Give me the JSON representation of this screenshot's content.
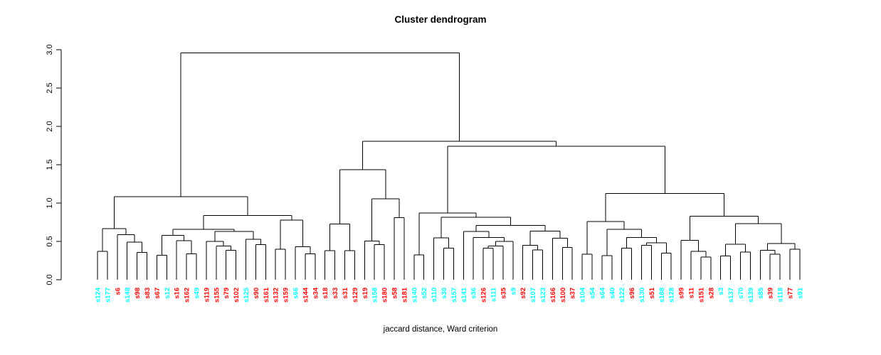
{
  "chart_data": {
    "type": "dendrogram",
    "title": "Cluster dendrogram",
    "xlabel": "jaccard distance, Ward criterion",
    "ylabel": "",
    "ylim": [
      0,
      3
    ],
    "yticks": [
      "0.0",
      "0.5",
      "1.0",
      "1.5",
      "2.0",
      "2.5",
      "3.0"
    ],
    "grid": false,
    "line_color": "#000000",
    "label_colors": {
      "red": "#FF0000",
      "cyan": "#00FFFF"
    },
    "leaves": [
      {
        "label": "s124",
        "color": "cyan"
      },
      {
        "label": "s177",
        "color": "cyan"
      },
      {
        "label": "s6",
        "color": "red"
      },
      {
        "label": "s148",
        "color": "cyan"
      },
      {
        "label": "s98",
        "color": "red"
      },
      {
        "label": "s83",
        "color": "red"
      },
      {
        "label": "s67",
        "color": "red"
      },
      {
        "label": "s12",
        "color": "cyan"
      },
      {
        "label": "s16",
        "color": "red"
      },
      {
        "label": "s162",
        "color": "red"
      },
      {
        "label": "s49",
        "color": "cyan"
      },
      {
        "label": "s119",
        "color": "red"
      },
      {
        "label": "s155",
        "color": "red"
      },
      {
        "label": "s79",
        "color": "red"
      },
      {
        "label": "s102",
        "color": "red"
      },
      {
        "label": "s125",
        "color": "cyan"
      },
      {
        "label": "s90",
        "color": "red"
      },
      {
        "label": "s161",
        "color": "red"
      },
      {
        "label": "s132",
        "color": "red"
      },
      {
        "label": "s159",
        "color": "red"
      },
      {
        "label": "s66",
        "color": "cyan"
      },
      {
        "label": "s144",
        "color": "red"
      },
      {
        "label": "s34",
        "color": "red"
      },
      {
        "label": "s18",
        "color": "red"
      },
      {
        "label": "s33",
        "color": "red"
      },
      {
        "label": "s31",
        "color": "red"
      },
      {
        "label": "s129",
        "color": "red"
      },
      {
        "label": "s19",
        "color": "red"
      },
      {
        "label": "s158",
        "color": "cyan"
      },
      {
        "label": "s180",
        "color": "red"
      },
      {
        "label": "s58",
        "color": "red"
      },
      {
        "label": "s181",
        "color": "red"
      },
      {
        "label": "s140",
        "color": "cyan"
      },
      {
        "label": "s52",
        "color": "cyan"
      },
      {
        "label": "s110",
        "color": "cyan"
      },
      {
        "label": "s30",
        "color": "cyan"
      },
      {
        "label": "s157",
        "color": "cyan"
      },
      {
        "label": "s141",
        "color": "cyan"
      },
      {
        "label": "s36",
        "color": "cyan"
      },
      {
        "label": "s126",
        "color": "red"
      },
      {
        "label": "s111",
        "color": "cyan"
      },
      {
        "label": "s35",
        "color": "red"
      },
      {
        "label": "s9",
        "color": "cyan"
      },
      {
        "label": "s92",
        "color": "red"
      },
      {
        "label": "s107",
        "color": "cyan"
      },
      {
        "label": "s123",
        "color": "cyan"
      },
      {
        "label": "s166",
        "color": "red"
      },
      {
        "label": "s100",
        "color": "red"
      },
      {
        "label": "s37",
        "color": "red"
      },
      {
        "label": "s104",
        "color": "cyan"
      },
      {
        "label": "s54",
        "color": "cyan"
      },
      {
        "label": "s64",
        "color": "cyan"
      },
      {
        "label": "s40",
        "color": "cyan"
      },
      {
        "label": "s122",
        "color": "cyan"
      },
      {
        "label": "s96",
        "color": "red"
      },
      {
        "label": "s130",
        "color": "cyan"
      },
      {
        "label": "s51",
        "color": "red"
      },
      {
        "label": "s188",
        "color": "cyan"
      },
      {
        "label": "s128",
        "color": "cyan"
      },
      {
        "label": "s99",
        "color": "red"
      },
      {
        "label": "s11",
        "color": "red"
      },
      {
        "label": "s151",
        "color": "red"
      },
      {
        "label": "s28",
        "color": "red"
      },
      {
        "label": "s3",
        "color": "cyan"
      },
      {
        "label": "s137",
        "color": "cyan"
      },
      {
        "label": "s70",
        "color": "cyan"
      },
      {
        "label": "s139",
        "color": "cyan"
      },
      {
        "label": "s85",
        "color": "cyan"
      },
      {
        "label": "s39",
        "color": "red"
      },
      {
        "label": "s118",
        "color": "cyan"
      },
      {
        "label": "s77",
        "color": "red"
      },
      {
        "label": "s91",
        "color": "cyan"
      }
    ],
    "tree": {
      "h": 2.96,
      "c": [
        {
          "h": 1.085,
          "c": [
            {
              "h": 0.665,
              "c": [
                {
                  "h": 0.37,
                  "c": [
                    "s124",
                    "s177"
                  ]
                },
                {
                  "h": 0.59,
                  "c": [
                    "s6",
                    {
                      "h": 0.49,
                      "c": [
                        "s148",
                        {
                          "h": 0.355,
                          "c": [
                            "s98",
                            "s83"
                          ]
                        }
                      ]
                    }
                  ]
                }
              ]
            },
            {
              "h": 0.84,
              "c": [
                {
                  "h": 0.657,
                  "c": [
                    {
                      "h": 0.58,
                      "c": [
                        {
                          "h": 0.32,
                          "c": [
                            "s67",
                            "s12"
                          ]
                        },
                        {
                          "h": 0.51,
                          "c": [
                            "s16",
                            {
                              "h": 0.34,
                              "c": [
                                "s162",
                                "s49"
                              ]
                            }
                          ]
                        }
                      ]
                    },
                    {
                      "h": 0.63,
                      "c": [
                        {
                          "h": 0.5,
                          "c": [
                            "s119",
                            {
                              "h": 0.44,
                              "c": [
                                "s155",
                                {
                                  "h": 0.385,
                                  "c": [
                                    "s79",
                                    "s102"
                                  ]
                                }
                              ]
                            }
                          ]
                        },
                        {
                          "h": 0.526,
                          "c": [
                            "s125",
                            {
                              "h": 0.46,
                              "c": [
                                "s90",
                                "s161"
                              ]
                            }
                          ]
                        }
                      ]
                    }
                  ]
                },
                {
                  "h": 0.78,
                  "c": [
                    {
                      "h": 0.4,
                      "c": [
                        "s132",
                        "s159"
                      ]
                    },
                    {
                      "h": 0.43,
                      "c": [
                        "s66",
                        {
                          "h": 0.34,
                          "c": [
                            "s144",
                            "s34"
                          ]
                        }
                      ]
                    }
                  ]
                }
              ]
            }
          ]
        },
        {
          "h": 1.805,
          "c": [
            {
              "h": 1.435,
              "c": [
                {
                  "h": 0.725,
                  "c": [
                    {
                      "h": 0.38,
                      "c": [
                        "s18",
                        "s33"
                      ]
                    },
                    {
                      "h": 0.38,
                      "c": [
                        "s31",
                        "s129"
                      ]
                    }
                  ]
                },
                {
                  "h": 1.056,
                  "c": [
                    {
                      "h": 0.503,
                      "c": [
                        "s19",
                        {
                          "h": 0.46,
                          "c": [
                            "s158",
                            "s180"
                          ]
                        }
                      ]
                    },
                    {
                      "h": 0.81,
                      "c": [
                        "s58",
                        "s181"
                      ]
                    }
                  ]
                }
              ]
            },
            {
              "h": 1.74,
              "c": [
                {
                  "h": 0.87,
                  "c": [
                    {
                      "h": 0.325,
                      "c": [
                        "s140",
                        "s52"
                      ]
                    },
                    {
                      "h": 0.815,
                      "c": [
                        {
                          "h": 0.547,
                          "c": [
                            "s110",
                            {
                              "h": 0.41,
                              "c": [
                                "s30",
                                "s157"
                              ]
                            }
                          ]
                        },
                        {
                          "h": 0.71,
                          "c": [
                            {
                              "h": 0.63,
                              "c": [
                                "s141",
                                {
                                  "h": 0.55,
                                  "c": [
                                    "s36",
                                    {
                                      "h": 0.5,
                                      "c": [
                                        {
                                          "h": 0.44,
                                          "c": [
                                            {
                                              "h": 0.41,
                                              "c": [
                                                "s126",
                                                "s111"
                                              ]
                                            },
                                            "s35"
                                          ]
                                        },
                                        "s9"
                                      ]
                                    }
                                  ]
                                }
                              ]
                            },
                            {
                              "h": 0.635,
                              "c": [
                                {
                                  "h": 0.45,
                                  "c": [
                                    "s92",
                                    {
                                      "h": 0.39,
                                      "c": [
                                        "s107",
                                        "s123"
                                      ]
                                    }
                                  ]
                                },
                                {
                                  "h": 0.54,
                                  "c": [
                                    "s166",
                                    {
                                      "h": 0.42,
                                      "c": [
                                        "s100",
                                        "s37"
                                      ]
                                    }
                                  ]
                                }
                              ]
                            }
                          ]
                        }
                      ]
                    }
                  ]
                },
                {
                  "h": 1.124,
                  "c": [
                    {
                      "h": 0.76,
                      "c": [
                        {
                          "h": 0.334,
                          "c": [
                            "s104",
                            "s54"
                          ]
                        },
                        {
                          "h": 0.657,
                          "c": [
                            {
                              "h": 0.317,
                              "c": [
                                "s64",
                                "s40"
                              ]
                            },
                            {
                              "h": 0.553,
                              "c": [
                                {
                                  "h": 0.41,
                                  "c": [
                                    "s122",
                                    "s96"
                                  ]
                                },
                                {
                                  "h": 0.48,
                                  "c": [
                                    {
                                      "h": 0.45,
                                      "c": [
                                        "s130",
                                        "s51"
                                      ]
                                    },
                                    {
                                      "h": 0.346,
                                      "c": [
                                        "s188",
                                        "s128"
                                      ]
                                    }
                                  ]
                                }
                              ]
                            }
                          ]
                        }
                      ]
                    },
                    {
                      "h": 0.83,
                      "c": [
                        {
                          "h": 0.512,
                          "c": [
                            "s99",
                            {
                              "h": 0.37,
                              "c": [
                                "s11",
                                {
                                  "h": 0.295,
                                  "c": [
                                    "s151",
                                    "s28"
                                  ]
                                }
                              ]
                            }
                          ]
                        },
                        {
                          "h": 0.73,
                          "c": [
                            {
                              "h": 0.464,
                              "c": [
                                {
                                  "h": 0.31,
                                  "c": [
                                    "s3",
                                    "s137"
                                  ]
                                },
                                {
                                  "h": 0.36,
                                  "c": [
                                    "s70",
                                    "s139"
                                  ]
                                }
                              ]
                            },
                            {
                              "h": 0.47,
                              "c": [
                                {
                                  "h": 0.384,
                                  "c": [
                                    "s85",
                                    {
                                      "h": 0.334,
                                      "c": [
                                        "s39",
                                        "s118"
                                      ]
                                    }
                                  ]
                                },
                                {
                                  "h": 0.4,
                                  "c": [
                                    "s77",
                                    "s91"
                                  ]
                                }
                              ]
                            }
                          ]
                        }
                      ]
                    }
                  ]
                }
              ]
            }
          ]
        }
      ]
    }
  }
}
